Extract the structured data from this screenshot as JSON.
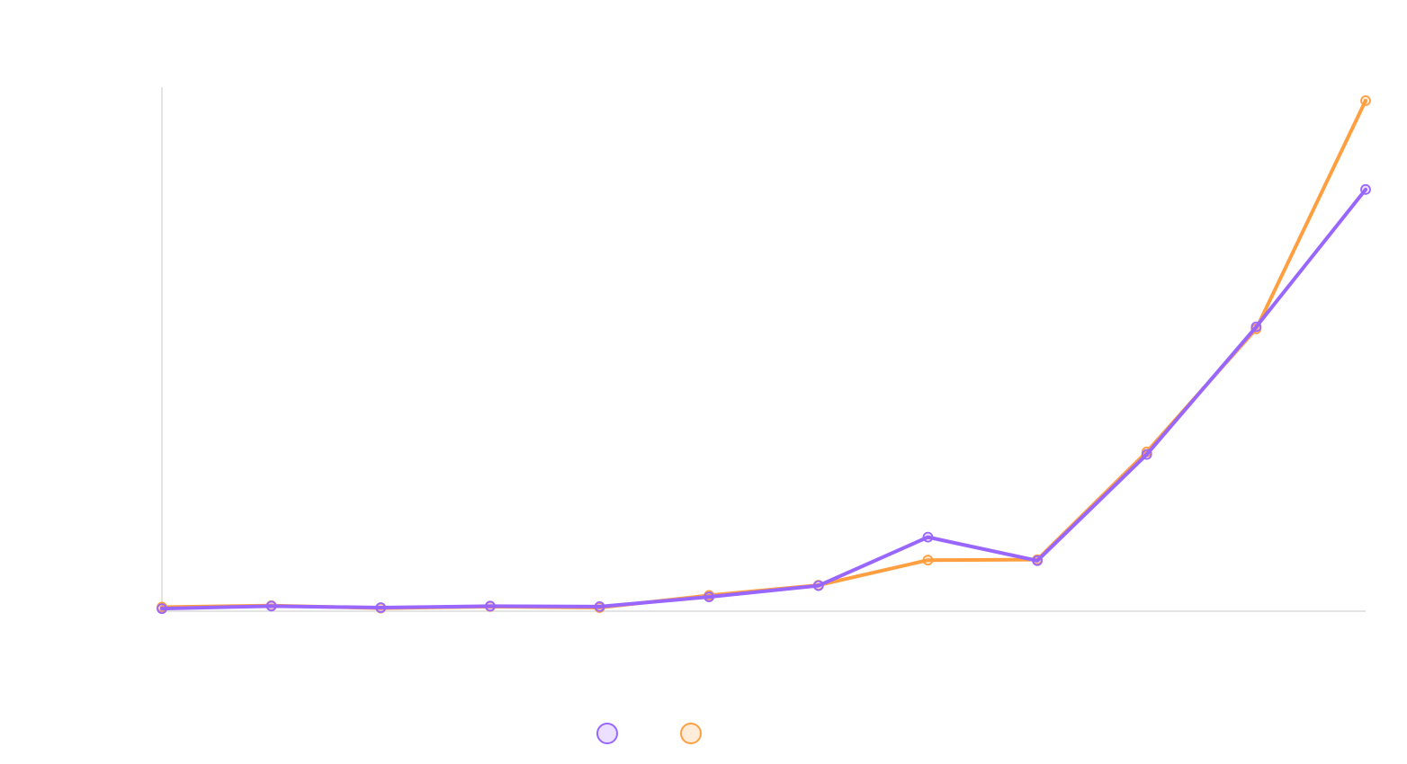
{
  "chart_data": {
    "type": "line",
    "title": "",
    "xlabel": "",
    "ylabel": "",
    "grid": false,
    "legend_position": "bottom",
    "x": [
      1,
      2,
      3,
      4,
      5,
      6,
      7,
      8,
      9,
      10,
      11,
      12
    ],
    "ylim": [
      0,
      100
    ],
    "series": [
      {
        "color": "#9966ff",
        "values": [
          0.5,
          1.0,
          0.7,
          1.0,
          0.9,
          2.8,
          5.0,
          14.5,
          9.9,
          30.7,
          55.7,
          82.6
        ]
      },
      {
        "color": "#ff9f40",
        "values": [
          0.8,
          1.1,
          0.6,
          0.9,
          0.7,
          3.1,
          5.1,
          10.0,
          10.1,
          31.2,
          55.3,
          100.0
        ]
      }
    ]
  }
}
